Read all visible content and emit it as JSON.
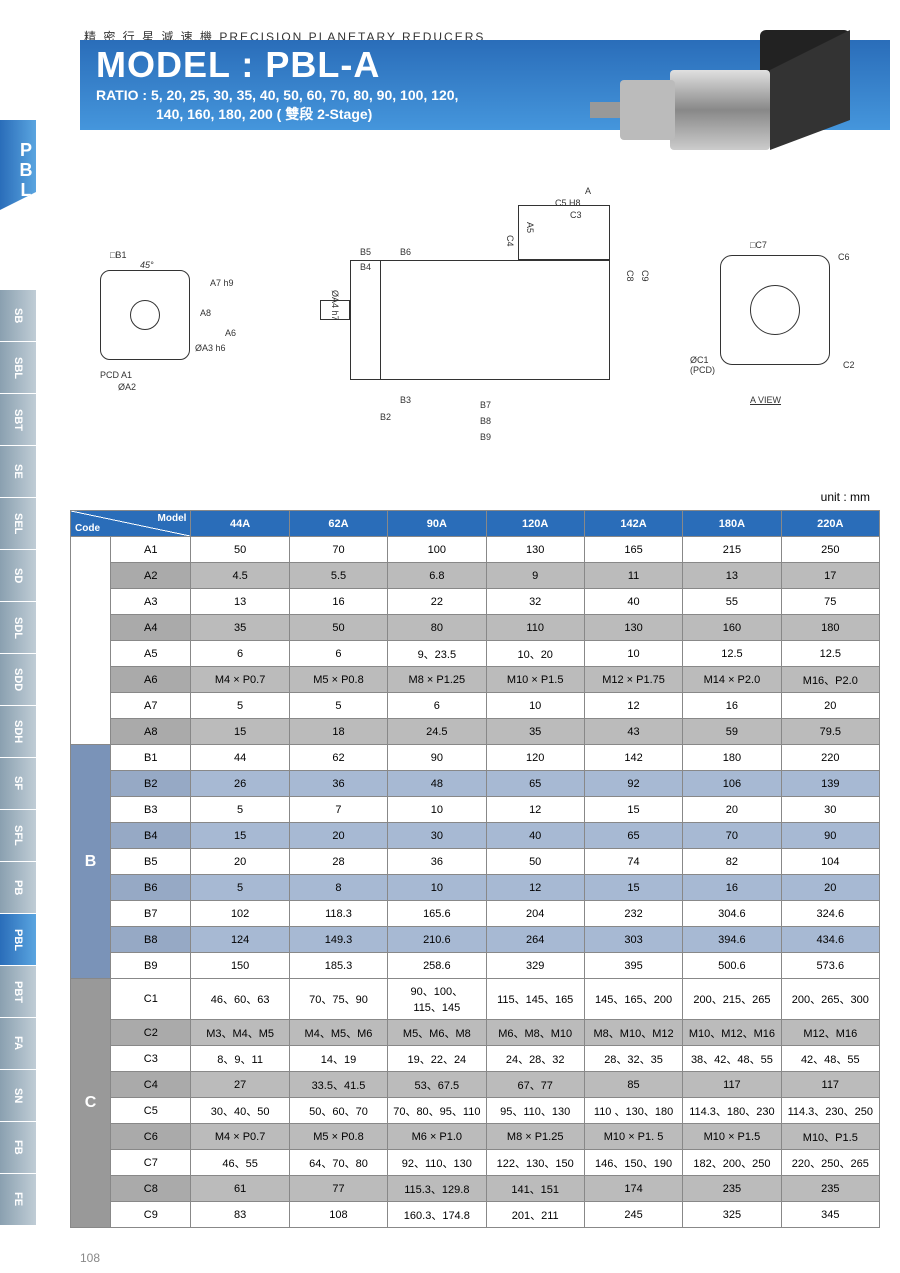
{
  "header": {
    "pretitle": "精 密 行 星 減 速 機  PRECISION PLANETARY REDUCERS",
    "title": "MODEL : PBL-A",
    "ratio_line1": "RATIO : 5, 20, 25, 30, 35, 40, 50, 60, 70, 80, 90, 100, 120,",
    "ratio_line2": "140, 160, 180, 200 ( 雙段 2-Stage)"
  },
  "sidebar": {
    "main": "PBL",
    "tabs": [
      "SB",
      "SBL",
      "SBT",
      "SE",
      "SEL",
      "SD",
      "SDL",
      "SDD",
      "SDH",
      "SF",
      "SFL",
      "PB",
      "PBL",
      "PBT",
      "FA",
      "SN",
      "FB",
      "FE"
    ],
    "active": "PBL"
  },
  "diagram_labels": {
    "b1": "□B1",
    "a45": "45°",
    "a7": "A7 h9",
    "a8": "A8",
    "a6": "A6",
    "a3": "ØA3 h6",
    "pcd_a1": "PCD A1",
    "a2": "ØA2",
    "b5": "B5",
    "b6": "B6",
    "b4": "B4",
    "a4": "ØA4 h7",
    "b3": "B3",
    "b2": "B2",
    "b7": "B7",
    "b8": "B8",
    "b9": "B9",
    "a": "A",
    "c5": "C5 H8",
    "c3": "C3",
    "a5": "A5",
    "c4": "C4",
    "c8": "C8",
    "c9": "C9",
    "c7": "□C7",
    "c6": "C6",
    "c1": "ØC1\n(PCD)",
    "c2": "C2",
    "aview": "A VIEW"
  },
  "unit": "unit : mm",
  "table": {
    "corner_code": "Code",
    "corner_model": "Model",
    "models": [
      "44A",
      "62A",
      "90A",
      "120A",
      "142A",
      "180A",
      "220A"
    ],
    "groups": [
      {
        "id": "A",
        "rows": [
          {
            "code": "A1",
            "vals": [
              "50",
              "70",
              "100",
              "130",
              "165",
              "215",
              "250"
            ]
          },
          {
            "code": "A2",
            "vals": [
              "4.5",
              "5.5",
              "6.8",
              "9",
              "11",
              "13",
              "17"
            ]
          },
          {
            "code": "A3",
            "vals": [
              "13",
              "16",
              "22",
              "32",
              "40",
              "55",
              "75"
            ]
          },
          {
            "code": "A4",
            "vals": [
              "35",
              "50",
              "80",
              "110",
              "130",
              "160",
              "180"
            ]
          },
          {
            "code": "A5",
            "vals": [
              "6",
              "6",
              "9、23.5",
              "10、20",
              "10",
              "12.5",
              "12.5"
            ]
          },
          {
            "code": "A6",
            "vals": [
              "M4 × P0.7",
              "M5 × P0.8",
              "M8 × P1.25",
              "M10 × P1.5",
              "M12 × P1.75",
              "M14 × P2.0",
              "M16、P2.0"
            ]
          },
          {
            "code": "A7",
            "vals": [
              "5",
              "5",
              "6",
              "10",
              "12",
              "16",
              "20"
            ]
          },
          {
            "code": "A8",
            "vals": [
              "15",
              "18",
              "24.5",
              "35",
              "43",
              "59",
              "79.5"
            ]
          }
        ]
      },
      {
        "id": "B",
        "rows": [
          {
            "code": "B1",
            "vals": [
              "44",
              "62",
              "90",
              "120",
              "142",
              "180",
              "220"
            ]
          },
          {
            "code": "B2",
            "vals": [
              "26",
              "36",
              "48",
              "65",
              "92",
              "106",
              "139"
            ]
          },
          {
            "code": "B3",
            "vals": [
              "5",
              "7",
              "10",
              "12",
              "15",
              "20",
              "30"
            ]
          },
          {
            "code": "B4",
            "vals": [
              "15",
              "20",
              "30",
              "40",
              "65",
              "70",
              "90"
            ]
          },
          {
            "code": "B5",
            "vals": [
              "20",
              "28",
              "36",
              "50",
              "74",
              "82",
              "104"
            ]
          },
          {
            "code": "B6",
            "vals": [
              "5",
              "8",
              "10",
              "12",
              "15",
              "16",
              "20"
            ]
          },
          {
            "code": "B7",
            "vals": [
              "102",
              "118.3",
              "165.6",
              "204",
              "232",
              "304.6",
              "324.6"
            ]
          },
          {
            "code": "B8",
            "vals": [
              "124",
              "149.3",
              "210.6",
              "264",
              "303",
              "394.6",
              "434.6"
            ]
          },
          {
            "code": "B9",
            "vals": [
              "150",
              "185.3",
              "258.6",
              "329",
              "395",
              "500.6",
              "573.6"
            ]
          }
        ]
      },
      {
        "id": "C",
        "rows": [
          {
            "code": "C1",
            "vals": [
              "46、60、63",
              "70、75、90",
              "90、100、\n115、145",
              "115、145、165",
              "145、165、200",
              "200、215、265",
              "200、265、300"
            ]
          },
          {
            "code": "C2",
            "vals": [
              "M3、M4、M5",
              "M4、M5、M6",
              "M5、M6、M8",
              "M6、M8、M10",
              "M8、M10、M12",
              "M10、M12、M16",
              "M12、M16"
            ]
          },
          {
            "code": "C3",
            "vals": [
              "8、9、11",
              "14、19",
              "19、22、24",
              "24、28、32",
              "28、32、35",
              "38、42、48、55",
              "42、48、55"
            ]
          },
          {
            "code": "C4",
            "vals": [
              "27",
              "33.5、41.5",
              "53、67.5",
              "67、77",
              "85",
              "117",
              "117"
            ]
          },
          {
            "code": "C5",
            "vals": [
              "30、40、50",
              "50、60、70",
              "70、80、95、110",
              "95、110、130",
              "110 、130、180",
              "114.3、180、230",
              "114.3、230、250"
            ]
          },
          {
            "code": "C6",
            "vals": [
              "M4 × P0.7",
              "M5 × P0.8",
              "M6 × P1.0",
              "M8 × P1.25",
              "M10 × P1. 5",
              "M10 × P1.5",
              "M10、P1.5"
            ]
          },
          {
            "code": "C7",
            "vals": [
              "46、55",
              "64、70、80",
              "92、110、130",
              "122、130、150",
              "146、150、190",
              "182、200、250",
              "220、250、265"
            ]
          },
          {
            "code": "C8",
            "vals": [
              "61",
              "77",
              "115.3、129.8",
              "141、151",
              "174",
              "235",
              "235"
            ]
          },
          {
            "code": "C9",
            "vals": [
              "83",
              "108",
              "160.3、174.8",
              "201、211",
              "245",
              "325",
              "345"
            ]
          }
        ]
      }
    ]
  },
  "page_number": "108"
}
